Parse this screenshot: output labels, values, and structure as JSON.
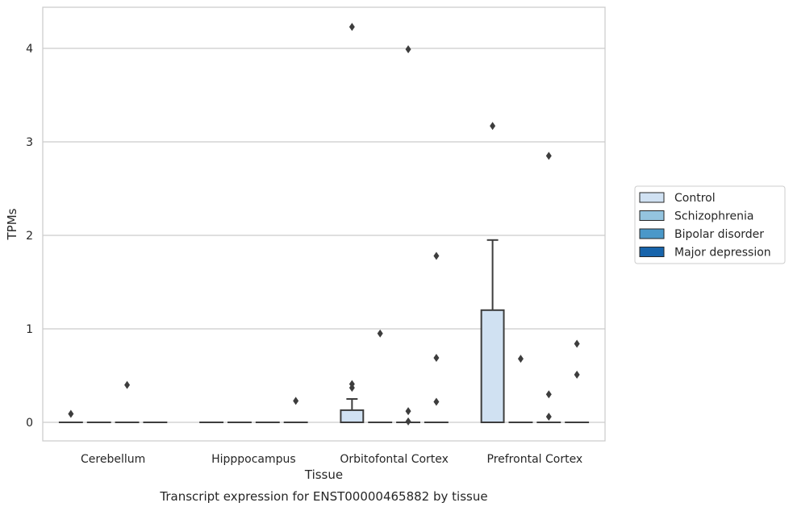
{
  "chart_data": {
    "type": "box",
    "xlabel": "Tissue",
    "ylabel": "TPMs",
    "caption": "Transcript expression for ENST00000465882 by tissue",
    "categories": [
      "Cerebellum",
      "Hipppocampus",
      "Orbitofontal Cortex",
      "Prefrontal Cortex"
    ],
    "ylim": [
      -0.2,
      4.3
    ],
    "yticks": [
      0,
      1,
      2,
      3,
      4
    ],
    "grid": true,
    "legend_position": "right",
    "series": [
      {
        "name": "Control",
        "color": "#d0e1f2",
        "boxes": [
          {
            "category": "Cerebellum",
            "q1": 0,
            "median": 0,
            "q3": 0,
            "whisker_low": 0,
            "whisker_high": 0,
            "outliers": [
              0.09
            ]
          },
          {
            "category": "Hipppocampus",
            "q1": 0,
            "median": 0,
            "q3": 0,
            "whisker_low": 0,
            "whisker_high": 0,
            "outliers": []
          },
          {
            "category": "Orbitofontal Cortex",
            "q1": 0,
            "median": 0,
            "q3": 0.13,
            "whisker_low": 0,
            "whisker_high": 0.25,
            "outliers": [
              0.37,
              0.41,
              4.23
            ]
          },
          {
            "category": "Prefrontal Cortex",
            "q1": 0,
            "median": 0,
            "q3": 1.2,
            "whisker_low": 0,
            "whisker_high": 1.95,
            "outliers": [
              3.17
            ]
          }
        ]
      },
      {
        "name": "Schizophrenia",
        "color": "#94c4df",
        "boxes": [
          {
            "category": "Cerebellum",
            "q1": 0,
            "median": 0,
            "q3": 0,
            "whisker_low": 0,
            "whisker_high": 0,
            "outliers": []
          },
          {
            "category": "Hipppocampus",
            "q1": 0,
            "median": 0,
            "q3": 0,
            "whisker_low": 0,
            "whisker_high": 0,
            "outliers": []
          },
          {
            "category": "Orbitofontal Cortex",
            "q1": 0,
            "median": 0,
            "q3": 0,
            "whisker_low": 0,
            "whisker_high": 0,
            "outliers": [
              0.95
            ]
          },
          {
            "category": "Prefrontal Cortex",
            "q1": 0,
            "median": 0,
            "q3": 0,
            "whisker_low": 0,
            "whisker_high": 0,
            "outliers": [
              0.68
            ]
          }
        ]
      },
      {
        "name": "Bipolar disorder",
        "color": "#4a98c9",
        "boxes": [
          {
            "category": "Cerebellum",
            "q1": 0,
            "median": 0,
            "q3": 0,
            "whisker_low": 0,
            "whisker_high": 0,
            "outliers": [
              0.4
            ]
          },
          {
            "category": "Hipppocampus",
            "q1": 0,
            "median": 0,
            "q3": 0,
            "whisker_low": 0,
            "whisker_high": 0,
            "outliers": []
          },
          {
            "category": "Orbitofontal Cortex",
            "q1": 0,
            "median": 0,
            "q3": 0,
            "whisker_low": 0,
            "whisker_high": 0,
            "outliers": [
              0.01,
              0.12,
              3.99
            ]
          },
          {
            "category": "Prefrontal Cortex",
            "q1": 0,
            "median": 0,
            "q3": 0,
            "whisker_low": 0,
            "whisker_high": 0,
            "outliers": [
              0.06,
              0.3,
              2.85
            ]
          }
        ]
      },
      {
        "name": "Major depression",
        "color": "#1764ab",
        "boxes": [
          {
            "category": "Cerebellum",
            "q1": 0,
            "median": 0,
            "q3": 0,
            "whisker_low": 0,
            "whisker_high": 0,
            "outliers": []
          },
          {
            "category": "Hipppocampus",
            "q1": 0,
            "median": 0,
            "q3": 0,
            "whisker_low": 0,
            "whisker_high": 0,
            "outliers": [
              0.23
            ]
          },
          {
            "category": "Orbitofontal Cortex",
            "q1": 0,
            "median": 0,
            "q3": 0,
            "whisker_low": 0,
            "whisker_high": 0,
            "outliers": [
              0.22,
              0.69,
              1.78
            ]
          },
          {
            "category": "Prefrontal Cortex",
            "q1": 0,
            "median": 0,
            "q3": 0,
            "whisker_low": 0,
            "whisker_high": 0,
            "outliers": [
              0.51,
              0.84
            ]
          }
        ]
      }
    ]
  }
}
